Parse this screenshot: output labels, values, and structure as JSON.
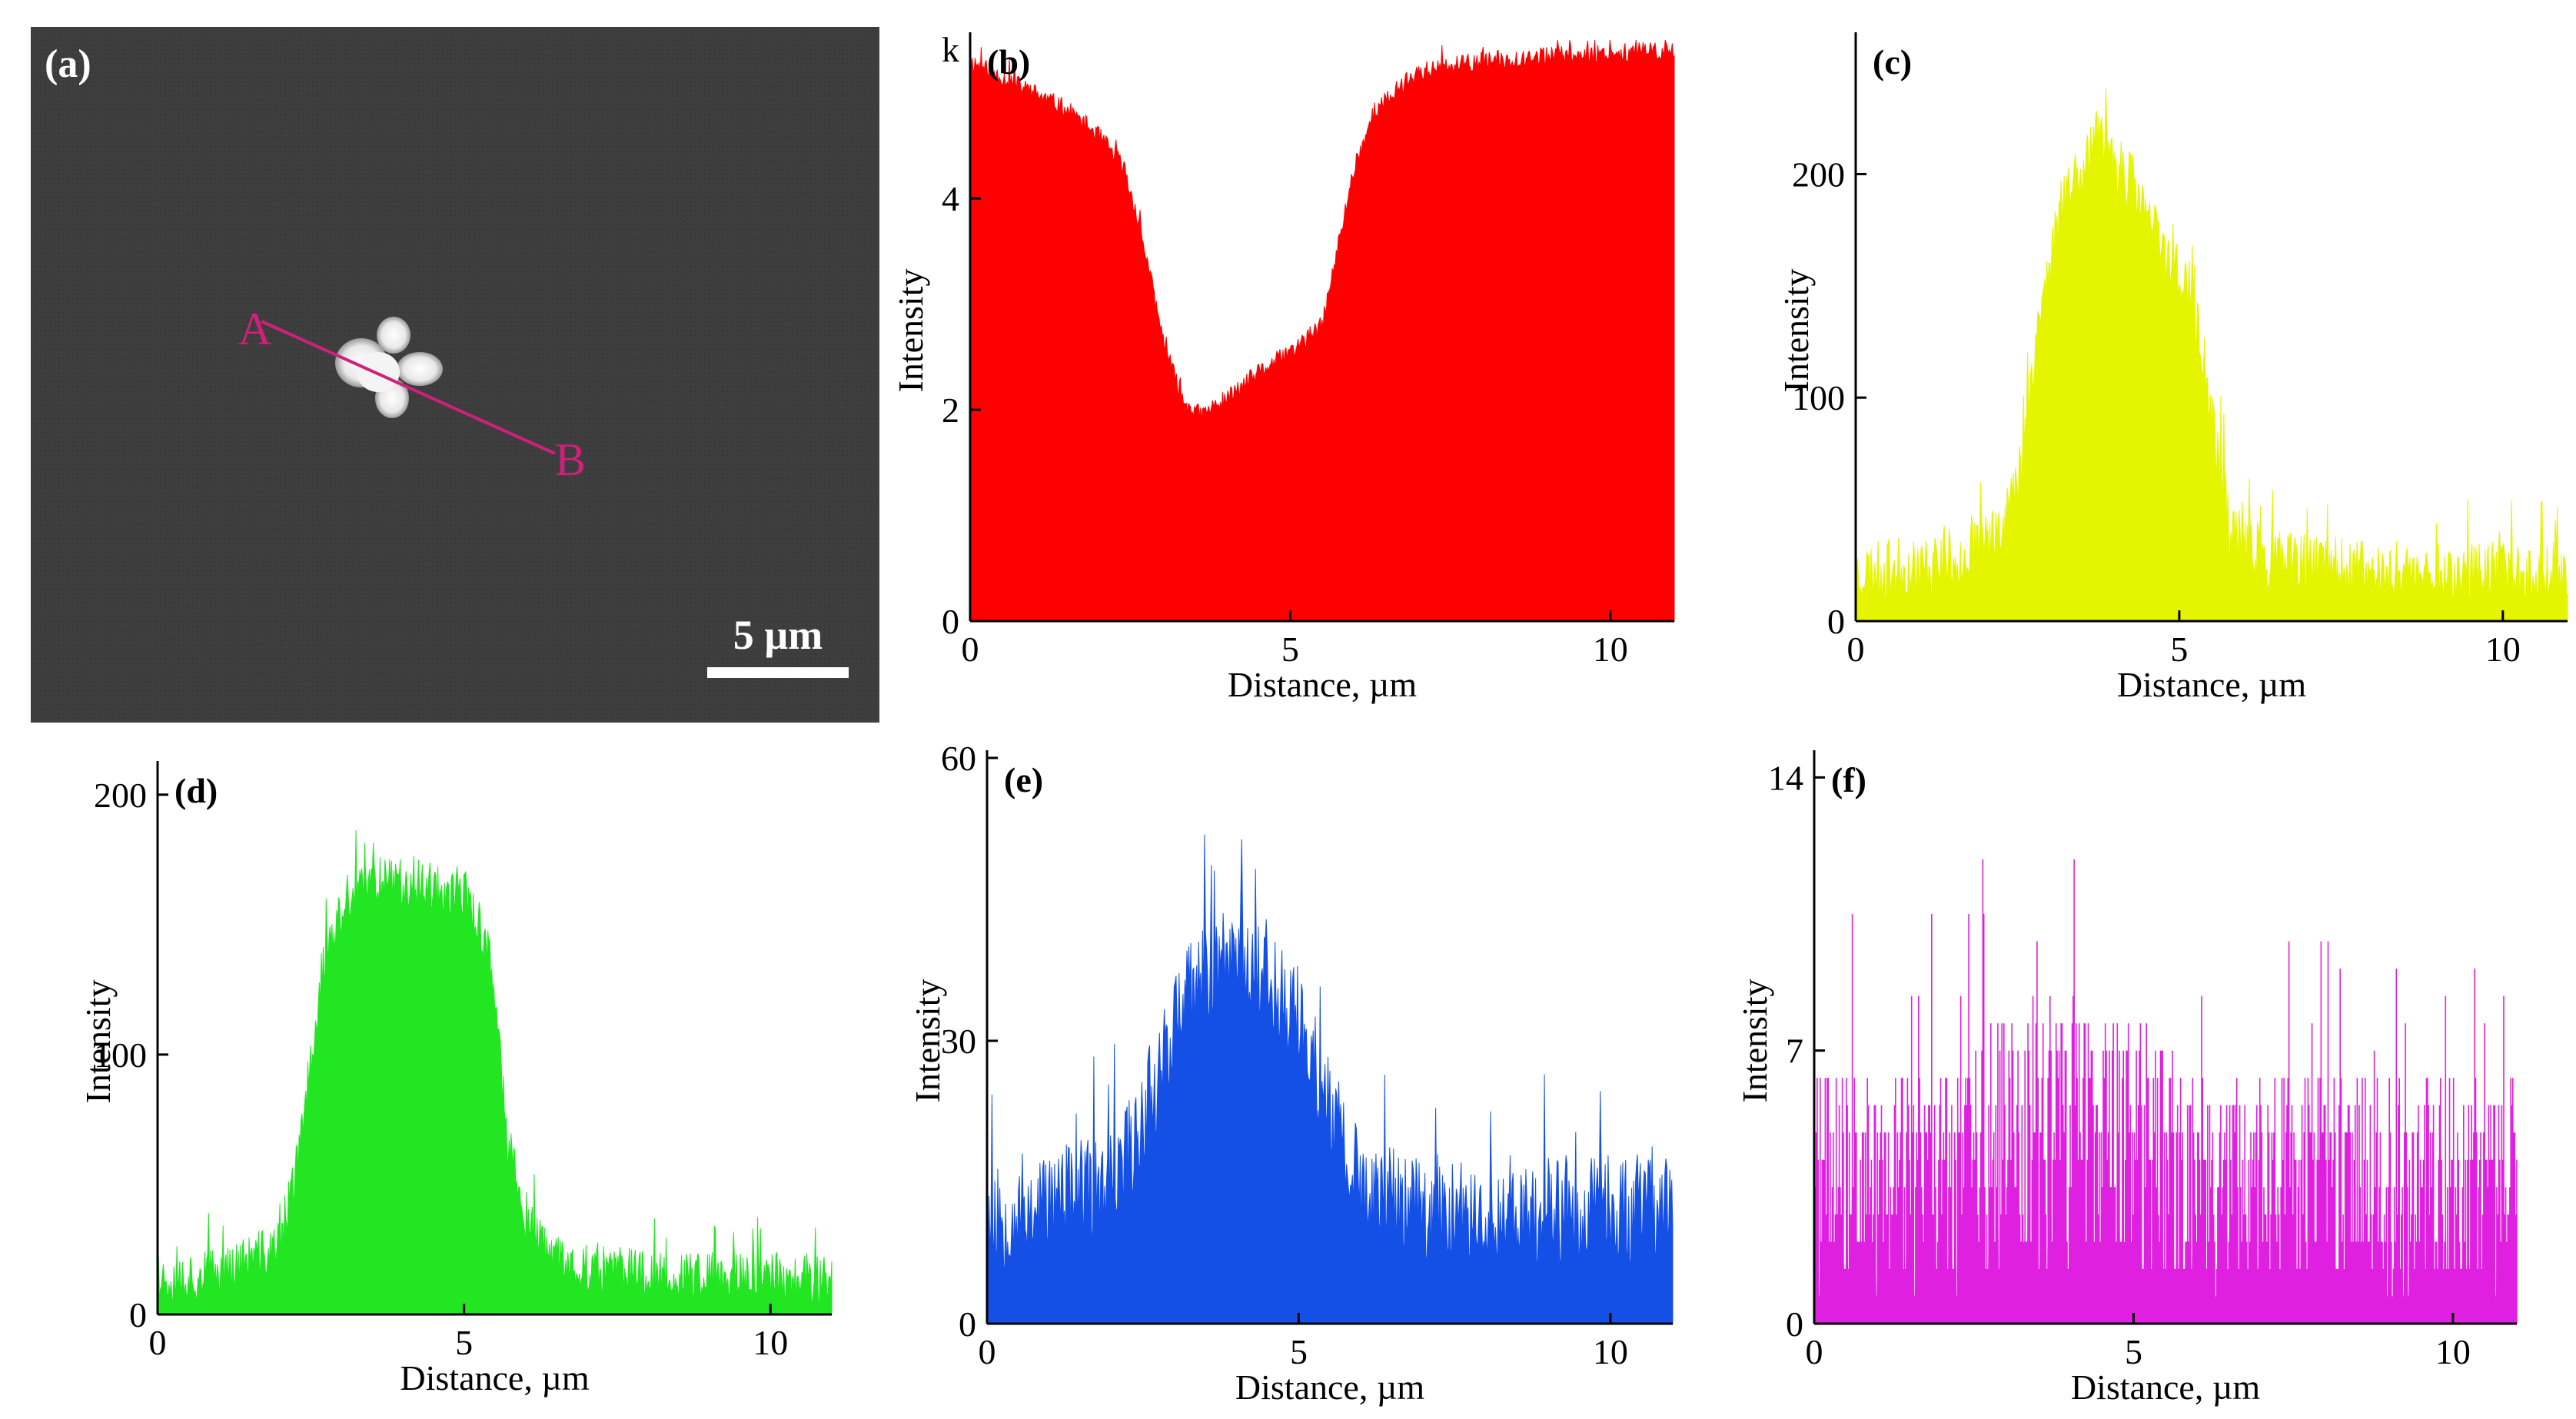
{
  "figure": {
    "panel_a": {
      "label": "(a)",
      "point_a": "A",
      "point_b": "B",
      "scale_bar": "5 µm",
      "line_color": "#d0207a"
    }
  },
  "chart_data": [
    {
      "panel": "(b)",
      "type": "area",
      "color": "#ff0000",
      "xlabel": "Distance, µm",
      "ylabel": "Intensity",
      "unit_prefix": "k",
      "xlim": [
        0,
        11
      ],
      "ylim": [
        0,
        5.5
      ],
      "xticks": [
        0,
        5,
        10
      ],
      "yticks": [
        0,
        2,
        4
      ],
      "noise": 0.09,
      "profile": [
        [
          0,
          5.3
        ],
        [
          0.5,
          5.15
        ],
        [
          1.0,
          5.0
        ],
        [
          1.5,
          4.85
        ],
        [
          2.0,
          4.6
        ],
        [
          2.4,
          4.3
        ],
        [
          2.7,
          3.6
        ],
        [
          3.0,
          2.7
        ],
        [
          3.3,
          2.1
        ],
        [
          3.6,
          1.95
        ],
        [
          4.0,
          2.1
        ],
        [
          4.5,
          2.35
        ],
        [
          5.0,
          2.55
        ],
        [
          5.5,
          2.8
        ],
        [
          5.7,
          3.4
        ],
        [
          6.0,
          4.3
        ],
        [
          6.3,
          4.8
        ],
        [
          6.7,
          5.05
        ],
        [
          7.0,
          5.2
        ],
        [
          8.0,
          5.3
        ],
        [
          9.0,
          5.35
        ],
        [
          10.0,
          5.38
        ],
        [
          11.0,
          5.4
        ]
      ],
      "seed": 11
    },
    {
      "panel": "(c)",
      "type": "area",
      "color": "#e5f500",
      "xlabel": "Distance, µm",
      "ylabel": "Intensity",
      "xlim": [
        0,
        11
      ],
      "ylim": [
        0,
        260
      ],
      "xticks": [
        0,
        5,
        10
      ],
      "yticks": [
        0,
        100,
        200
      ],
      "noise": 14,
      "profile": [
        [
          0,
          22
        ],
        [
          1.0,
          24
        ],
        [
          2.0,
          32
        ],
        [
          2.5,
          60
        ],
        [
          2.8,
          130
        ],
        [
          3.2,
          190
        ],
        [
          3.7,
          215
        ],
        [
          4.2,
          200
        ],
        [
          4.7,
          170
        ],
        [
          5.2,
          145
        ],
        [
          5.5,
          90
        ],
        [
          5.8,
          40
        ],
        [
          6.2,
          28
        ],
        [
          8.0,
          22
        ],
        [
          9.0,
          22
        ],
        [
          10.0,
          22
        ],
        [
          11.0,
          22
        ]
      ],
      "seed": 23
    },
    {
      "panel": "(d)",
      "type": "area",
      "color": "#22e622",
      "xlabel": "Distance, µm",
      "ylabel": "Intensity",
      "xlim": [
        0,
        11
      ],
      "ylim": [
        0,
        210
      ],
      "xticks": [
        0,
        5,
        10
      ],
      "yticks": [
        0,
        100,
        200
      ],
      "noise": 10,
      "profile": [
        [
          0,
          14
        ],
        [
          1.0,
          16
        ],
        [
          2.0,
          26
        ],
        [
          2.3,
          60
        ],
        [
          2.7,
          135
        ],
        [
          3.1,
          160
        ],
        [
          3.7,
          168
        ],
        [
          4.3,
          165
        ],
        [
          5.0,
          162
        ],
        [
          5.4,
          140
        ],
        [
          5.7,
          70
        ],
        [
          6.0,
          35
        ],
        [
          6.5,
          20
        ],
        [
          8.0,
          15
        ],
        [
          9.0,
          14
        ],
        [
          10.0,
          14
        ],
        [
          11.0,
          14
        ]
      ],
      "seed": 37
    },
    {
      "panel": "(e)",
      "type": "area",
      "color": "#1450e6",
      "xlabel": "Distance, µm",
      "ylabel": "Intensity",
      "xlim": [
        0,
        11
      ],
      "ylim": [
        0,
        60
      ],
      "xticks": [
        0,
        5,
        10
      ],
      "yticks": [
        0,
        30,
        60
      ],
      "noise": 6,
      "profile": [
        [
          0,
          11
        ],
        [
          1.0,
          13
        ],
        [
          2.0,
          14
        ],
        [
          2.5,
          22
        ],
        [
          3.0,
          32
        ],
        [
          3.6,
          38
        ],
        [
          4.0,
          40
        ],
        [
          4.5,
          37
        ],
        [
          5.0,
          32
        ],
        [
          5.5,
          22
        ],
        [
          6.0,
          14
        ],
        [
          7.0,
          12
        ],
        [
          8.0,
          12
        ],
        [
          9.0,
          12
        ],
        [
          10.0,
          12
        ],
        [
          11.0,
          12
        ]
      ],
      "seed": 53
    },
    {
      "panel": "(f)",
      "type": "bar",
      "color": "#e020e0",
      "xlabel": "Distance, µm",
      "ylabel": "Intensity",
      "xlim": [
        0,
        11
      ],
      "ylim": [
        0,
        14.5
      ],
      "xticks": [
        0,
        5,
        10
      ],
      "yticks": [
        0,
        7,
        14
      ],
      "quantum": 0.7,
      "profile": [
        [
          0,
          3.6
        ],
        [
          2.0,
          4.0
        ],
        [
          3.0,
          4.6
        ],
        [
          4.0,
          5.0
        ],
        [
          5.0,
          4.4
        ],
        [
          6.0,
          3.8
        ],
        [
          11.0,
          3.6
        ]
      ],
      "seed": 71
    }
  ]
}
